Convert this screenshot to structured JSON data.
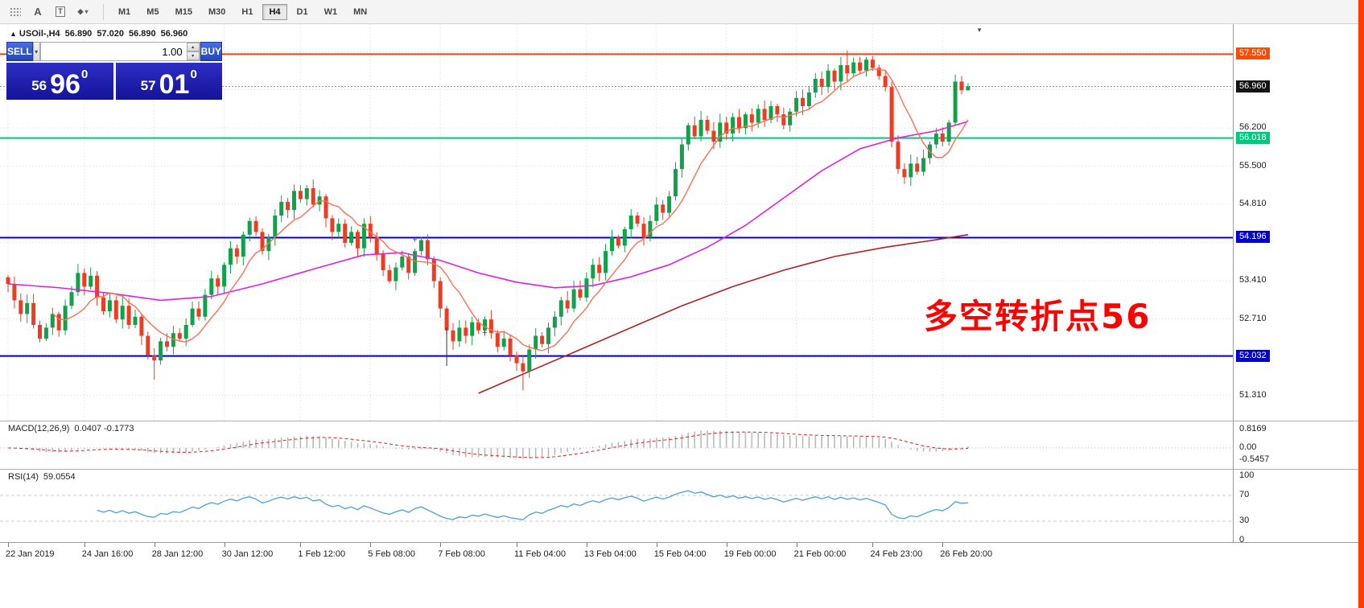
{
  "toolbar": {
    "icon_a": "A",
    "icon_t": "T",
    "diamond_glyph": "◆",
    "caret_glyph": "▾",
    "timeframes": [
      "M1",
      "M5",
      "M15",
      "M30",
      "H1",
      "H4",
      "D1",
      "W1",
      "MN"
    ],
    "active_timeframe": "H4"
  },
  "chart_header": {
    "marker": "▲",
    "symbol_period": "USOil-,H4",
    "open": "56.890",
    "high": "57.020",
    "low": "56.890",
    "close": "56.960"
  },
  "trade_panel": {
    "sell_label": "SELL",
    "buy_label": "BUY",
    "volume": "1.00",
    "combo_caret": "▾",
    "spinner_up": "▴",
    "spinner_down": "▾",
    "sell_price": {
      "small": "56",
      "big": "96",
      "sup": "0"
    },
    "buy_price": {
      "small": "57",
      "big": "01",
      "sup": "0"
    }
  },
  "annotation": {
    "text": "多空转折点56",
    "color": "#ff0000"
  },
  "price_axis": {
    "grid_labels": [
      {
        "text": "56.200",
        "price": 56.2
      },
      {
        "text": "55.500",
        "price": 55.5
      },
      {
        "text": "54.810",
        "price": 54.81
      },
      {
        "text": "53.410",
        "price": 53.41
      },
      {
        "text": "52.710",
        "price": 52.71
      },
      {
        "text": "51.310",
        "price": 51.31
      }
    ],
    "badges": [
      {
        "text": "57.550",
        "price": 57.55,
        "bg": "#ff4b00"
      },
      {
        "text": "56.960",
        "price": 56.96,
        "bg": "#141414"
      },
      {
        "text": "56.018",
        "price": 56.018,
        "bg": "#00c87e"
      },
      {
        "text": "54.196",
        "price": 54.196,
        "bg": "#0000dd"
      },
      {
        "text": "52.032",
        "price": 52.032,
        "bg": "#0000dd"
      }
    ]
  },
  "macd": {
    "label": "MACD(12,26,9)",
    "values": "0.0407 -0.1773",
    "axis": [
      {
        "text": "0.8169",
        "v": 0.8169
      },
      {
        "text": "0.00",
        "v": 0
      },
      {
        "text": "-0.5457",
        "v": -0.5457
      }
    ]
  },
  "rsi": {
    "label": "RSI(14)",
    "value": "59.0554",
    "axis": [
      {
        "text": "100",
        "v": 100
      },
      {
        "text": "70",
        "v": 70
      },
      {
        "text": "30",
        "v": 30
      },
      {
        "text": "0",
        "v": 0
      }
    ],
    "levels": [
      70,
      30
    ]
  },
  "x_axis": {
    "labels": [
      {
        "text": "22 Jan 2019",
        "i": 0
      },
      {
        "text": "24 Jan 16:00",
        "i": 12
      },
      {
        "text": "28 Jan 12:00",
        "i": 23
      },
      {
        "text": "30 Jan 12:00",
        "i": 34
      },
      {
        "text": "1 Feb 12:00",
        "i": 46
      },
      {
        "text": "5 Feb 08:00",
        "i": 57
      },
      {
        "text": "7 Feb 08:00",
        "i": 68
      },
      {
        "text": "11 Feb 04:00",
        "i": 80
      },
      {
        "text": "13 Feb 04:00",
        "i": 91
      },
      {
        "text": "15 Feb 04:00",
        "i": 102
      },
      {
        "text": "19 Feb 00:00",
        "i": 113
      },
      {
        "text": "21 Feb 00:00",
        "i": 124
      },
      {
        "text": "24 Feb 23:00",
        "i": 136
      },
      {
        "text": "26 Feb 20:00",
        "i": 147
      }
    ]
  },
  "chart_data": {
    "type": "candlestick",
    "symbol": "USOil-",
    "timeframe": "H4",
    "title": "USOil-,H4 56.890 57.020 56.890 56.960",
    "closes": [
      53.35,
      53.05,
      52.8,
      53.0,
      52.6,
      52.35,
      52.55,
      52.8,
      52.5,
      52.95,
      53.2,
      53.55,
      53.3,
      53.5,
      53.1,
      52.85,
      53.05,
      52.7,
      52.95,
      52.6,
      52.75,
      52.4,
      52.05,
      51.95,
      52.3,
      52.2,
      52.45,
      52.35,
      52.6,
      52.9,
      52.75,
      53.15,
      53.45,
      53.3,
      53.7,
      54.0,
      53.85,
      54.25,
      54.5,
      54.3,
      53.95,
      54.2,
      54.6,
      54.85,
      54.7,
      55.05,
      54.9,
      55.1,
      54.8,
      54.95,
      54.55,
      54.3,
      54.45,
      54.1,
      54.3,
      54.0,
      54.45,
      54.2,
      53.9,
      53.6,
      53.4,
      53.65,
      53.85,
      53.55,
      53.95,
      54.15,
      53.8,
      53.4,
      52.9,
      52.5,
      52.3,
      52.55,
      52.4,
      52.65,
      52.5,
      52.7,
      52.45,
      52.2,
      52.35,
      52.05,
      51.9,
      51.75,
      52.15,
      52.4,
      52.25,
      52.55,
      52.75,
      53.05,
      52.9,
      53.25,
      53.1,
      53.45,
      53.7,
      53.55,
      53.95,
      54.2,
      54.05,
      54.35,
      54.6,
      54.45,
      54.2,
      54.5,
      54.8,
      54.65,
      54.95,
      55.45,
      55.9,
      56.25,
      56.05,
      56.35,
      56.15,
      55.95,
      56.3,
      56.1,
      56.4,
      56.2,
      56.45,
      56.3,
      56.55,
      56.35,
      56.6,
      56.45,
      56.25,
      56.5,
      56.75,
      56.6,
      56.85,
      57.1,
      56.95,
      57.25,
      57.05,
      57.35,
      57.2,
      57.4,
      57.25,
      57.45,
      57.3,
      57.15,
      56.95,
      55.95,
      55.45,
      55.3,
      55.55,
      55.4,
      55.65,
      55.9,
      56.1,
      55.95,
      56.3,
      57.05,
      56.89,
      56.96
    ],
    "wick_overrides": {
      "23": [
        null,
        51.6
      ],
      "81": [
        null,
        51.4
      ],
      "132": [
        57.62,
        null
      ],
      "149": [
        57.18,
        null
      ],
      "151": [
        57.02,
        56.89
      ]
    },
    "current_price": 56.96,
    "hlines": [
      {
        "price": 57.55,
        "color": "#ff3c00",
        "width": 2
      },
      {
        "price": 56.018,
        "color": "#00c87e",
        "width": 2
      },
      {
        "price": 54.196,
        "color": "#0000dd",
        "width": 2
      },
      {
        "price": 52.032,
        "color": "#0000dd",
        "width": 2
      }
    ],
    "grid_prices": [
      57.6,
      56.9,
      56.2,
      55.5,
      54.81,
      54.11,
      53.41,
      52.71,
      52.01,
      51.31
    ],
    "ma_fast_period": 8,
    "ma_mid_points": [
      [
        0,
        53.35
      ],
      [
        8,
        53.28
      ],
      [
        16,
        53.18
      ],
      [
        24,
        53.05
      ],
      [
        32,
        53.12
      ],
      [
        40,
        53.35
      ],
      [
        48,
        53.62
      ],
      [
        56,
        53.88
      ],
      [
        62,
        53.92
      ],
      [
        68,
        53.78
      ],
      [
        74,
        53.55
      ],
      [
        80,
        53.38
      ],
      [
        86,
        53.28
      ],
      [
        92,
        53.32
      ],
      [
        98,
        53.48
      ],
      [
        104,
        53.7
      ],
      [
        110,
        54.02
      ],
      [
        116,
        54.42
      ],
      [
        122,
        54.92
      ],
      [
        128,
        55.42
      ],
      [
        134,
        55.82
      ],
      [
        140,
        56.02
      ],
      [
        146,
        56.15
      ],
      [
        151,
        56.32
      ]
    ],
    "ma_slow_points": [
      [
        74,
        51.35
      ],
      [
        82,
        51.75
      ],
      [
        90,
        52.15
      ],
      [
        98,
        52.55
      ],
      [
        106,
        52.95
      ],
      [
        114,
        53.3
      ],
      [
        122,
        53.6
      ],
      [
        130,
        53.85
      ],
      [
        138,
        54.02
      ],
      [
        145,
        54.14
      ],
      [
        151,
        54.25
      ]
    ],
    "objects": {
      "vline": {
        "i": 69,
        "from": 52.55,
        "to": 51.85
      },
      "plus_marks": [
        [
          64,
          54.15
        ],
        [
          75,
          52.45
        ]
      ],
      "top_marker": {
        "i": 152.8,
        "price": 57.95,
        "glyph": "▾"
      }
    },
    "colors": {
      "up": "#0ea24b",
      "down": "#ee3b22",
      "ma_fast": "#ff6f50",
      "ma_mid": "#e020e0",
      "ma_slow": "#b22222",
      "macd_bars": "#b9b9b9",
      "macd_signal": "#e02020",
      "rsi_line": "#4aa0dc",
      "grid": "#d8d8d8"
    },
    "macd_periods": [
      12,
      26,
      9
    ],
    "rsi_period": 14
  }
}
